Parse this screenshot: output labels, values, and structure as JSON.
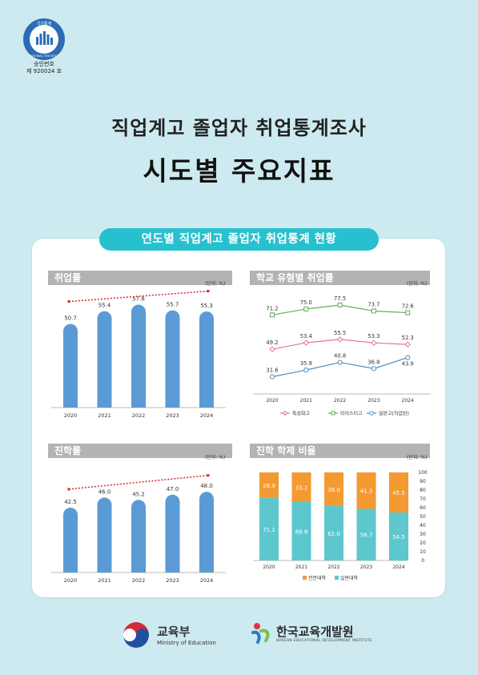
{
  "seal": {
    "ring_text": "국가통계",
    "ring_text_en": "NATIONAL STATISTICS",
    "line1": "승인번호",
    "line2": "제 920024 호"
  },
  "title": {
    "line1": "직업계고 졸업자 취업통계조사",
    "line2": "시도별 주요지표"
  },
  "section_pill": "연도별 직업계고 졸업자 취업통계 현황",
  "colors": {
    "bar": "#5b9bd5",
    "trend": "#d9262b",
    "pill": "#27c0ce",
    "special": "#e8728c",
    "meister": "#5fae57",
    "general": "#4a90c8",
    "college": "#f39a32",
    "university": "#5cc7cd"
  },
  "chart_data": [
    {
      "type": "bar",
      "title": "취업률",
      "unit": "(단위: %)",
      "categories": [
        "2020",
        "2021",
        "2022",
        "2023",
        "2024"
      ],
      "values": [
        50.7,
        55.4,
        57.8,
        55.7,
        55.3
      ],
      "value_labels": [
        "50.7",
        "55.4",
        "57.8",
        "55.7",
        "55.3"
      ],
      "trendline": true
    },
    {
      "type": "line",
      "title": "학교 유형별 취업률",
      "unit": "(단위: %)",
      "categories": [
        "2020",
        "2021",
        "2022",
        "2023",
        "2024"
      ],
      "series": [
        {
          "name": "마이스터고",
          "values": [
            71.2,
            75.0,
            77.5,
            73.7,
            72.6
          ],
          "labels": [
            "71.2",
            "75.0",
            "77.5",
            "73.7",
            "72.6"
          ]
        },
        {
          "name": "특성화고",
          "values": [
            49.2,
            53.4,
            55.5,
            53.3,
            52.3
          ],
          "labels": [
            "49.2",
            "53.4",
            "55.5",
            "53.3",
            "52.3"
          ]
        },
        {
          "name": "일반고(직업반)",
          "values": [
            31.6,
            35.9,
            40.8,
            36.8,
            43.9
          ],
          "labels": [
            "31.6",
            "35.9",
            "40.8",
            "36.8",
            "43.9"
          ]
        }
      ],
      "legend": [
        "특성화고",
        "마이스터고",
        "일반고(직업반)"
      ],
      "legend_placement": "bottom"
    },
    {
      "type": "bar",
      "title": "진학률",
      "unit": "(단위: %)",
      "categories": [
        "2020",
        "2021",
        "2022",
        "2023",
        "2024"
      ],
      "values": [
        42.5,
        46.0,
        45.2,
        47.0,
        48.0
      ],
      "value_labels": [
        "42.5",
        "46.0",
        "45.2",
        "47.0",
        "48.0"
      ],
      "trendline": true
    },
    {
      "type": "bar",
      "stacked": true,
      "title": "진학 학제 비율",
      "unit": "(단위: %)",
      "categories": [
        "2020",
        "2021",
        "2022",
        "2023",
        "2024"
      ],
      "series": [
        {
          "name": "일반대학",
          "values": [
            71.1,
            66.8,
            62.0,
            58.7,
            54.5
          ],
          "labels": [
            "71.1",
            "66.8",
            "62.0",
            "58.7",
            "54.5"
          ]
        },
        {
          "name": "전문대학",
          "values": [
            28.9,
            33.2,
            38.0,
            41.3,
            45.5
          ],
          "labels": [
            "28.9",
            "33.2",
            "38.0",
            "41.3",
            "45.5"
          ]
        }
      ],
      "yticks": [
        "0",
        "10",
        "20",
        "30",
        "40",
        "50",
        "60",
        "70",
        "80",
        "90",
        "100"
      ],
      "ylim": [
        0,
        100
      ],
      "legend": [
        "전문대학",
        "일반대학"
      ],
      "legend_placement": "bottom"
    }
  ],
  "footer": {
    "moe_name": "교육부",
    "moe_en": "Ministry of Education",
    "kedi_name": "한국교육개발원",
    "kedi_en": "KOREAN EDUCATIONAL DEVELOPMENT INSTITUTE"
  }
}
